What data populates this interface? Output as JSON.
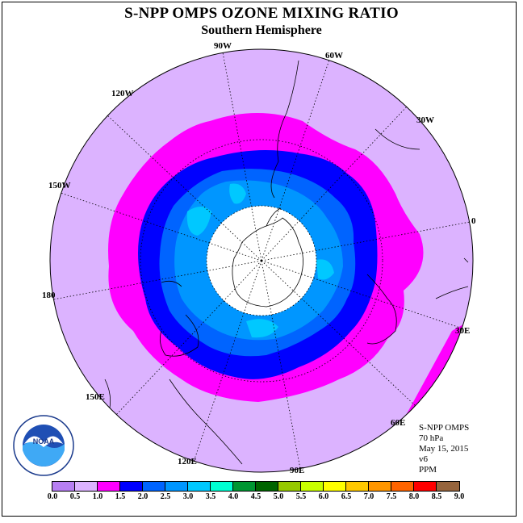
{
  "title": "S-NPP OMPS OZONE MIXING RATIO",
  "subtitle": "Southern Hemisphere",
  "longitude_labels": [
    {
      "text": "90W"
    },
    {
      "text": "60W"
    },
    {
      "text": "30W"
    },
    {
      "text": "120W"
    },
    {
      "text": "150W"
    },
    {
      "text": "0"
    },
    {
      "text": "180"
    },
    {
      "text": "30E"
    },
    {
      "text": "150E"
    },
    {
      "text": "60E"
    },
    {
      "text": "120E"
    },
    {
      "text": "90E"
    }
  ],
  "info": {
    "instrument": "S-NPP OMPS",
    "level": "70 hPa",
    "date": "May 15, 2015",
    "version": "v6",
    "units": "PPM"
  },
  "logo": {
    "text": "NOAA",
    "icon": "noaa-logo"
  },
  "colorbar": {
    "colors": [
      "#b77ff2",
      "#dcb3ff",
      "#ff00ff",
      "#0000ff",
      "#0064ff",
      "#0096ff",
      "#00c8ff",
      "#00ffd2",
      "#009632",
      "#006400",
      "#96c800",
      "#c8ff00",
      "#ffff00",
      "#ffc800",
      "#ff9600",
      "#ff6400",
      "#ff0000",
      "#96643c"
    ],
    "ticks": [
      "0.0",
      "0.5",
      "1.0",
      "1.5",
      "2.0",
      "2.5",
      "3.0",
      "3.5",
      "4.0",
      "4.5",
      "5.0",
      "5.5",
      "6.0",
      "6.5",
      "7.0",
      "7.5",
      "8.0",
      "8.5",
      "9.0"
    ]
  },
  "map": {
    "projection": "south polar stereographic",
    "missing_data_region": "south pole (white)",
    "colors": {
      "background": "#dcb3ff",
      "band_1": "#ff00ff",
      "band_2": "#0000ff",
      "band_3": "#0064ff",
      "band_4": "#0096ff",
      "band_5": "#00c8ff"
    }
  }
}
